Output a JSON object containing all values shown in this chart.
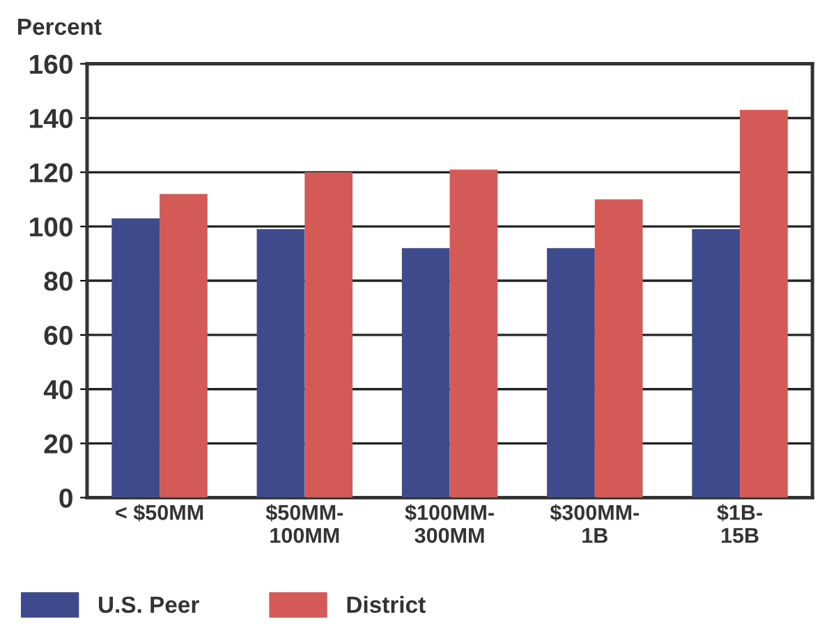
{
  "chart_data": {
    "type": "bar",
    "ylabel": "Percent",
    "categories": [
      "< $50MM",
      "$50MM-\n100MM",
      "$100MM-\n300MM",
      "$300MM-\n1B",
      "$1B-\n15B"
    ],
    "series": [
      {
        "name": "U.S. Peer",
        "color": "#3f4a8c",
        "values": [
          103,
          99,
          92,
          92,
          99
        ]
      },
      {
        "name": "District",
        "color": "#d35a56",
        "values": [
          112,
          120,
          121,
          110,
          143
        ]
      }
    ],
    "ylim": [
      0,
      160
    ],
    "yticks": [
      0,
      20,
      40,
      60,
      80,
      100,
      120,
      140,
      160
    ],
    "grid": "y",
    "legend": "bottom left"
  }
}
